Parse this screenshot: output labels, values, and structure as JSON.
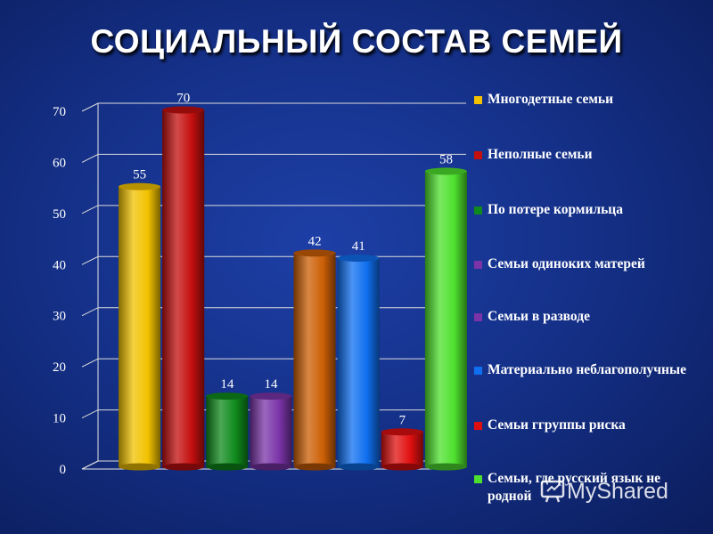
{
  "title": "СОЦИАЛЬНЫЙ СОСТАВ СЕМЕЙ",
  "watermark": "MyShared",
  "chart_data": {
    "type": "bar",
    "ylim": [
      0,
      70
    ],
    "yticks": [
      0,
      10,
      20,
      30,
      40,
      50,
      60,
      70
    ],
    "grid": true,
    "legend_position": "right",
    "series": [
      {
        "name": "Многодетные семьи",
        "value": 55,
        "color": "#f2c200"
      },
      {
        "name": "Неполные семьи",
        "value": 70,
        "color": "#c40f0f"
      },
      {
        "name": "По потере кормильца",
        "value": 14,
        "color": "#0f8a1c"
      },
      {
        "name": "Семьи одиноких матерей",
        "value": 14,
        "color": "#7a34a8"
      },
      {
        "name": "Семьи в разводе",
        "value": 42,
        "color": "#cc5f06"
      },
      {
        "name": "Материально неблагополучные",
        "value": 41,
        "color": "#0f6ff0"
      },
      {
        "name": "Семьи ггруппы риска",
        "value": 7,
        "color": "#e00f0f"
      },
      {
        "name": "Семьи, где русский язык не родной",
        "value": 58,
        "color": "#4ee02e"
      }
    ]
  },
  "legend_colors": [
    "#f2c200",
    "#c40f0f",
    "#0f8a1c",
    "#7a34a8",
    "#7a34a8",
    "#0f6ff0",
    "#e00f0f",
    "#4ee02e"
  ]
}
